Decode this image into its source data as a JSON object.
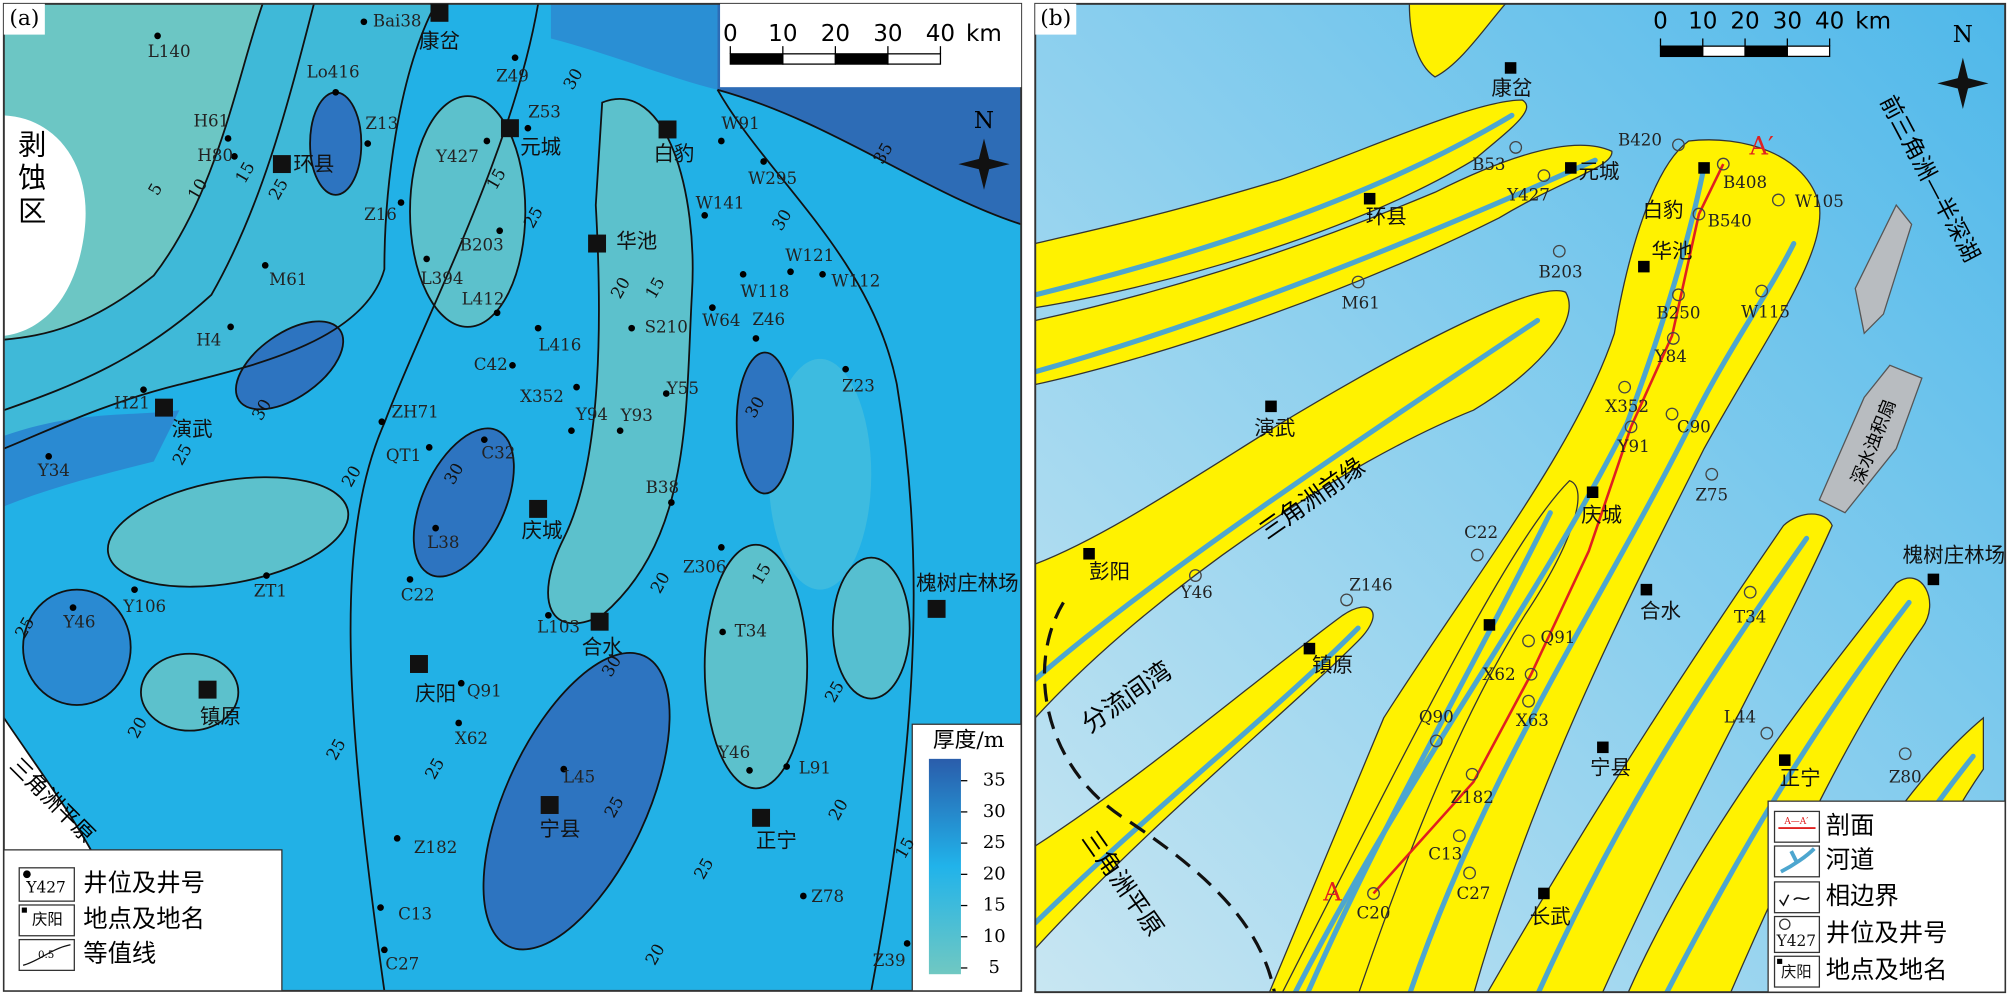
{
  "panel_a": {
    "label": "(a)",
    "north": "N",
    "scale": {
      "ticks": [
        0,
        10,
        20,
        30,
        40
      ],
      "unit": "km"
    },
    "areas": [
      "剥蚀区",
      "三角洲平原"
    ],
    "wells": [
      "Bai38",
      "L140",
      "Lo416",
      "Z49",
      "Z53",
      "H61",
      "H80",
      "Z13",
      "Y427",
      "W91",
      "W295",
      "Z16",
      "B203",
      "W141",
      "L394",
      "L412",
      "W121",
      "W118",
      "W112",
      "M61",
      "W64",
      "S210",
      "Z46",
      "H4",
      "L416",
      "C42",
      "Z23",
      "X352",
      "Y55",
      "H21",
      "Y94",
      "Y93",
      "ZH71",
      "QT1",
      "C32",
      "Y34",
      "B38",
      "L38",
      "Z306",
      "ZT1",
      "C22",
      "Y106",
      "Y46",
      "L103",
      "T34",
      "Q91",
      "X62",
      "Y46",
      "L91",
      "L45",
      "Z182",
      "Z78",
      "C13",
      "C27",
      "Z39"
    ],
    "towns": [
      "康岔",
      "环县",
      "元城",
      "白豹",
      "华池",
      "演武",
      "庆城",
      "合水",
      "镇原",
      "庆阳",
      "宁县",
      "正宁",
      "槐树庄林场"
    ],
    "contour_labels": [
      5,
      10,
      15,
      25,
      15,
      25,
      30,
      35,
      30,
      20,
      15,
      30,
      25,
      20,
      30,
      25,
      20,
      20,
      15,
      30,
      25,
      30,
      25,
      25,
      20,
      15,
      25,
      25,
      20
    ],
    "legend": [
      {
        "icon": "Y427",
        "label": "井位及井号"
      },
      {
        "icon": "庆阳",
        "label": "地点及地名"
      },
      {
        "icon": "0.5",
        "label": "等值线"
      }
    ],
    "colorbar": {
      "title": "厚度/m",
      "lim": [
        4,
        38.5
      ],
      "ticks": [
        35,
        30,
        25,
        20,
        15,
        10,
        5
      ]
    }
  },
  "panel_b": {
    "label": "(b)",
    "north": "N",
    "scale": {
      "ticks": [
        0,
        10,
        20,
        30,
        40
      ],
      "unit": "km"
    },
    "wells": [
      "B420",
      "B53",
      "Y427",
      "B408",
      "W105",
      "B540",
      "B203",
      "M61",
      "W115",
      "B250",
      "Y84",
      "X352",
      "C90",
      "Y91",
      "Z75",
      "C22",
      "Y46",
      "Z146",
      "T34",
      "Q91",
      "X62",
      "X63",
      "Q90",
      "L44",
      "Z80",
      "Z182",
      "C13",
      "C27",
      "C20"
    ],
    "towns": [
      "康岔",
      "元城",
      "白豹",
      "华池",
      "环县",
      "演武",
      "庆城",
      "合水",
      "彭阳",
      "镇原",
      "宁县",
      "正宁",
      "长武",
      "槐树庄林场"
    ],
    "areas": [
      "前三角洲—半深湖",
      "深水浊积扇",
      "三角洲前缘",
      "分流间湾",
      "三角洲平原"
    ],
    "section_ends": [
      "A",
      "A′"
    ],
    "legend": [
      {
        "icon": "A—A′",
        "label": "剖面"
      },
      {
        "label": "河道"
      },
      {
        "label": "相边界"
      },
      {
        "icon": "Y427",
        "label": "井位及井号"
      },
      {
        "icon": "庆阳",
        "label": "地点及地名"
      }
    ]
  }
}
